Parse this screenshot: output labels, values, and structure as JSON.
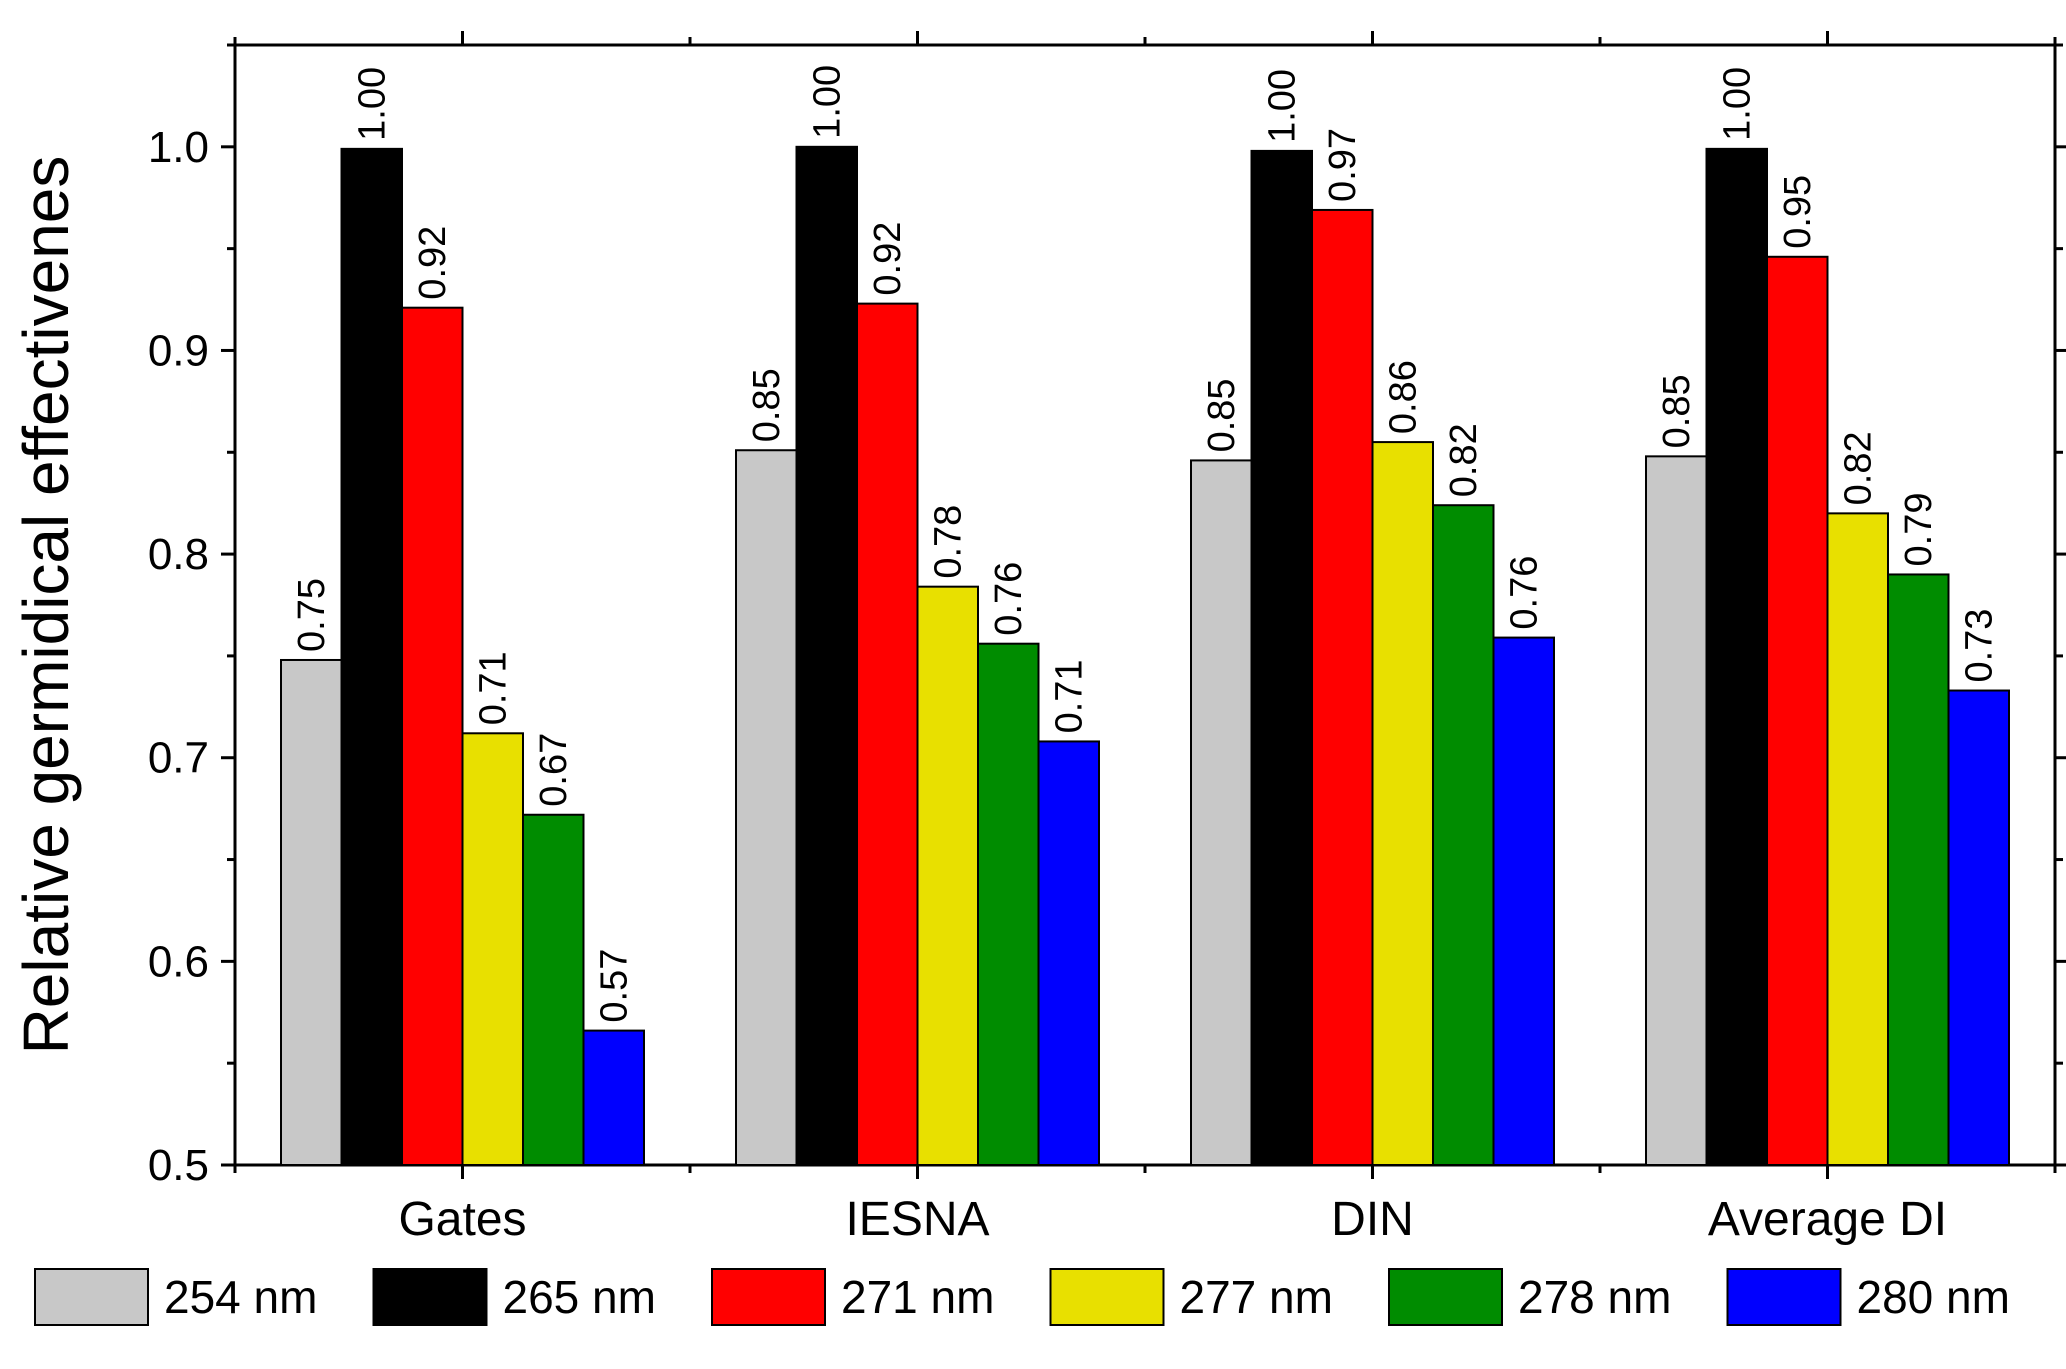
{
  "chart_data": {
    "type": "bar",
    "title": "",
    "xlabel": "",
    "ylabel": "Relative germidical effectivenes",
    "ylim": [
      0.5,
      1.05
    ],
    "yticks": [
      0.5,
      0.6,
      0.7,
      0.8,
      0.9,
      1.0
    ],
    "ytick_labels": [
      "0.5",
      "0.6",
      "0.7",
      "0.8",
      "0.9",
      "1.0"
    ],
    "categories": [
      "Gates",
      "IESNA",
      "DIN",
      "Average DI"
    ],
    "series": [
      {
        "name": "254 nm",
        "color": "#c8c8c8",
        "values": [
          0.748,
          0.851,
          0.846,
          0.848
        ],
        "labels": [
          "0.75",
          "0.85",
          "0.85",
          "0.85"
        ]
      },
      {
        "name": "265 nm",
        "color": "#000000",
        "values": [
          0.999,
          1.0,
          0.998,
          0.999
        ],
        "labels": [
          "1.00",
          "1.00",
          "1.00",
          "1.00"
        ]
      },
      {
        "name": "271 nm",
        "color": "#ff0000",
        "values": [
          0.921,
          0.923,
          0.969,
          0.946
        ],
        "labels": [
          "0.92",
          "0.92",
          "0.97",
          "0.95"
        ]
      },
      {
        "name": "277 nm",
        "color": "#e8e000",
        "values": [
          0.712,
          0.784,
          0.855,
          0.82
        ],
        "labels": [
          "0.71",
          "0.78",
          "0.86",
          "0.82"
        ]
      },
      {
        "name": "278 nm",
        "color": "#008c00",
        "values": [
          0.672,
          0.756,
          0.824,
          0.79
        ],
        "labels": [
          "0.67",
          "0.76",
          "0.82",
          "0.79"
        ]
      },
      {
        "name": "280 nm",
        "color": "#0000ff",
        "values": [
          0.566,
          0.708,
          0.759,
          0.733
        ],
        "labels": [
          "0.57",
          "0.71",
          "0.76",
          "0.73"
        ]
      }
    ],
    "legend_position": "bottom",
    "grid": false
  }
}
